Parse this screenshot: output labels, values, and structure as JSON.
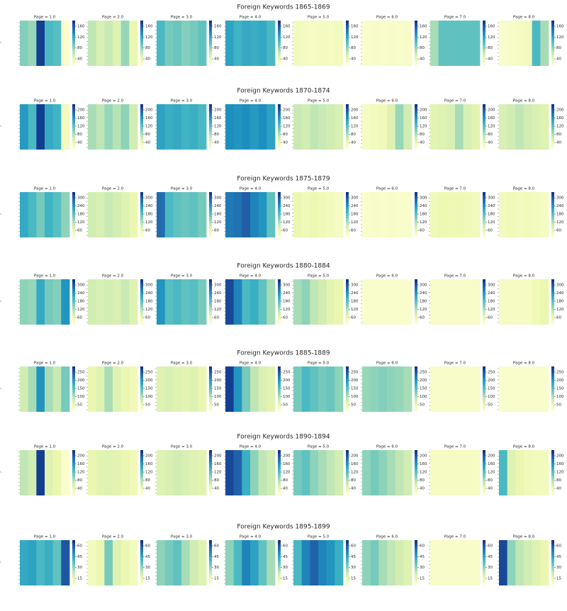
{
  "figure": {
    "colormap": [
      "#ffffd9",
      "#edf8b1",
      "#c7e9b4",
      "#7fcdbb",
      "#41b6c4",
      "#1d91c0",
      "#225ea8",
      "#0c2c84"
    ]
  },
  "chart_data": [
    {
      "type": "heatmap",
      "title": "Foreign Keywords 1865-1869",
      "panels": [
        {
          "title": "Page = 1.0",
          "values": [
            0.42,
            0.38,
            0.95,
            0.55,
            0.52,
            0.05
          ]
        },
        {
          "title": "Page = 2.0",
          "values": [
            0.3,
            0.22,
            0.28,
            0.2,
            0.38,
            0.15
          ]
        },
        {
          "title": "Page = 3.0",
          "values": [
            0.55,
            0.45,
            0.48,
            0.42,
            0.45,
            0.5
          ]
        },
        {
          "title": "Page = 4.0",
          "values": [
            0.65,
            0.58,
            0.62,
            0.6,
            0.62,
            0.55
          ]
        },
        {
          "title": "Page = 5.0",
          "values": [
            0.1,
            0.09,
            0.08,
            0.09,
            0.08,
            0.1
          ]
        },
        {
          "title": "Page = 6.0",
          "values": [
            0.05,
            0.06,
            0.05,
            0.06,
            0.05,
            0.06
          ]
        },
        {
          "title": "Page = 7.0",
          "values": [
            0.35,
            0.5,
            0.5,
            0.5,
            0.5,
            0.5
          ]
        },
        {
          "title": "Page = 8.0",
          "values": [
            0.05,
            0.06,
            0.08,
            0.1,
            0.55,
            0.35
          ]
        }
      ],
      "colorbar_ticks": [
        "160",
        "120",
        "80",
        "40"
      ]
    },
    {
      "type": "heatmap",
      "title": "Foreign Keywords 1870-1874",
      "panels": [
        {
          "title": "Page = 1.0",
          "values": [
            0.68,
            0.55,
            0.95,
            0.62,
            0.58,
            0.1
          ]
        },
        {
          "title": "Page = 2.0",
          "values": [
            0.35,
            0.3,
            0.38,
            0.32,
            0.4,
            0.25
          ]
        },
        {
          "title": "Page = 3.0",
          "values": [
            0.65,
            0.6,
            0.62,
            0.58,
            0.6,
            0.55
          ]
        },
        {
          "title": "Page = 4.0",
          "values": [
            0.72,
            0.7,
            0.72,
            0.68,
            0.72,
            0.65
          ]
        },
        {
          "title": "Page = 5.0",
          "values": [
            0.28,
            0.25,
            0.3,
            0.28,
            0.25,
            0.22
          ]
        },
        {
          "title": "Page = 6.0",
          "values": [
            0.08,
            0.1,
            0.12,
            0.2,
            0.38,
            0.25
          ]
        },
        {
          "title": "Page = 7.0",
          "values": [
            0.18,
            0.2,
            0.22,
            0.35,
            0.22,
            0.18
          ]
        },
        {
          "title": "Page = 8.0",
          "values": [
            0.22,
            0.25,
            0.3,
            0.25,
            0.22,
            0.2
          ]
        }
      ],
      "colorbar_ticks": [
        "200",
        "160",
        "120",
        "80",
        "40"
      ]
    },
    {
      "type": "heatmap",
      "title": "Foreign Keywords 1875-1879",
      "panels": [
        {
          "title": "Page = 1.0",
          "values": [
            0.62,
            0.55,
            0.45,
            0.58,
            0.52,
            0.4
          ]
        },
        {
          "title": "Page = 2.0",
          "values": [
            0.25,
            0.22,
            0.28,
            0.24,
            0.2,
            0.15
          ]
        },
        {
          "title": "Page = 3.0",
          "values": [
            0.82,
            0.55,
            0.5,
            0.48,
            0.5,
            0.45
          ]
        },
        {
          "title": "Page = 4.0",
          "values": [
            0.78,
            0.8,
            0.86,
            0.75,
            0.7,
            0.5
          ]
        },
        {
          "title": "Page = 5.0",
          "values": [
            0.15,
            0.12,
            0.14,
            0.12,
            0.1,
            0.08
          ]
        },
        {
          "title": "Page = 6.0",
          "values": [
            0.05,
            0.06,
            0.05,
            0.06,
            0.05,
            0.05
          ]
        },
        {
          "title": "Page = 7.0",
          "values": [
            0.12,
            0.14,
            0.13,
            0.14,
            0.12,
            0.1
          ]
        },
        {
          "title": "Page = 8.0",
          "values": [
            0.1,
            0.12,
            0.1,
            0.11,
            0.1,
            0.08
          ]
        }
      ],
      "colorbar_ticks": [
        "300",
        "240",
        "180",
        "120",
        "60"
      ]
    },
    {
      "type": "heatmap",
      "title": "Foreign Keywords 1880-1884",
      "panels": [
        {
          "title": "Page = 1.0",
          "values": [
            0.4,
            0.38,
            0.62,
            0.45,
            0.42,
            0.7
          ]
        },
        {
          "title": "Page = 2.0",
          "values": [
            0.25,
            0.22,
            0.24,
            0.22,
            0.28,
            0.2
          ]
        },
        {
          "title": "Page = 3.0",
          "values": [
            0.7,
            0.52,
            0.55,
            0.5,
            0.52,
            0.45
          ]
        },
        {
          "title": "Page = 4.0",
          "values": [
            0.92,
            0.75,
            0.55,
            0.6,
            0.5,
            0.35
          ]
        },
        {
          "title": "Page = 5.0",
          "values": [
            0.35,
            0.4,
            0.3,
            0.25,
            0.18,
            0.15
          ]
        },
        {
          "title": "Page = 6.0",
          "values": [
            0.05,
            0.05,
            0.05,
            0.05,
            0.05,
            0.05
          ]
        },
        {
          "title": "Page = 7.0",
          "values": [
            0.06,
            0.06,
            0.06,
            0.06,
            0.06,
            0.06
          ]
        },
        {
          "title": "Page = 8.0",
          "values": [
            0.08,
            0.08,
            0.08,
            0.08,
            0.12,
            0.15
          ]
        }
      ],
      "colorbar_ticks": [
        "300",
        "240",
        "180",
        "120",
        "60"
      ]
    },
    {
      "type": "heatmap",
      "title": "Foreign Keywords 1885-1889",
      "panels": [
        {
          "title": "Page = 1.0",
          "values": [
            0.25,
            0.35,
            0.7,
            0.35,
            0.28,
            0.45
          ]
        },
        {
          "title": "Page = 2.0",
          "values": [
            0.15,
            0.2,
            0.35,
            0.2,
            0.15,
            0.12
          ]
        },
        {
          "title": "Page = 3.0",
          "values": [
            0.2,
            0.22,
            0.2,
            0.18,
            0.2,
            0.15
          ]
        },
        {
          "title": "Page = 4.0",
          "values": [
            0.95,
            0.7,
            0.45,
            0.3,
            0.22,
            0.18
          ]
        },
        {
          "title": "Page = 5.0",
          "values": [
            0.45,
            0.55,
            0.5,
            0.45,
            0.48,
            0.4
          ]
        },
        {
          "title": "Page = 6.0",
          "values": [
            0.38,
            0.4,
            0.42,
            0.4,
            0.38,
            0.35
          ]
        },
        {
          "title": "Page = 7.0",
          "values": [
            0.06,
            0.06,
            0.06,
            0.06,
            0.06,
            0.06
          ]
        },
        {
          "title": "Page = 8.0",
          "values": [
            0.05,
            0.05,
            0.05,
            0.05,
            0.05,
            0.05
          ]
        }
      ],
      "colorbar_ticks": [
        "250",
        "200",
        "150",
        "100",
        "50"
      ]
    },
    {
      "type": "heatmap",
      "title": "Foreign Keywords 1890-1894",
      "panels": [
        {
          "title": "Page = 1.0",
          "values": [
            0.3,
            0.25,
            0.95,
            0.2,
            0.15,
            0.05
          ]
        },
        {
          "title": "Page = 2.0",
          "values": [
            0.15,
            0.18,
            0.2,
            0.18,
            0.15,
            0.12
          ]
        },
        {
          "title": "Page = 3.0",
          "values": [
            0.2,
            0.22,
            0.25,
            0.22,
            0.2,
            0.18
          ]
        },
        {
          "title": "Page = 4.0",
          "values": [
            0.92,
            0.85,
            0.6,
            0.4,
            0.3,
            0.25
          ]
        },
        {
          "title": "Page = 5.0",
          "values": [
            0.45,
            0.5,
            0.4,
            0.35,
            0.3,
            0.25
          ]
        },
        {
          "title": "Page = 6.0",
          "values": [
            0.4,
            0.45,
            0.4,
            0.35,
            0.3,
            0.25
          ]
        },
        {
          "title": "Page = 7.0",
          "values": [
            0.08,
            0.08,
            0.08,
            0.08,
            0.08,
            0.08
          ]
        },
        {
          "title": "Page = 8.0",
          "values": [
            0.55,
            0.2,
            0.15,
            0.12,
            0.1,
            0.1
          ]
        }
      ],
      "colorbar_ticks": [
        "200",
        "160",
        "120",
        "80",
        "40"
      ]
    },
    {
      "type": "heatmap",
      "title": "Foreign Keywords 1895-1899",
      "panels": [
        {
          "title": "Page = 1.0",
          "values": [
            0.62,
            0.65,
            0.55,
            0.6,
            0.5,
            0.88
          ]
        },
        {
          "title": "Page = 2.0",
          "values": [
            0.1,
            0.15,
            0.45,
            0.2,
            0.15,
            0.1
          ]
        },
        {
          "title": "Page = 3.0",
          "values": [
            0.4,
            0.45,
            0.5,
            0.35,
            0.25,
            0.2
          ]
        },
        {
          "title": "Page = 4.0",
          "values": [
            0.4,
            0.55,
            0.75,
            0.65,
            0.5,
            0.35
          ]
        },
        {
          "title": "Page = 5.0",
          "values": [
            0.55,
            0.75,
            0.85,
            0.75,
            0.7,
            0.6
          ]
        },
        {
          "title": "Page = 6.0",
          "values": [
            0.4,
            0.45,
            0.35,
            0.3,
            0.25,
            0.2
          ]
        },
        {
          "title": "Page = 7.0",
          "values": [
            0.06,
            0.06,
            0.06,
            0.06,
            0.06,
            0.06
          ]
        },
        {
          "title": "Page = 8.0",
          "values": [
            0.92,
            0.4,
            0.3,
            0.25,
            0.2,
            0.15
          ]
        }
      ],
      "colorbar_ticks": [
        "60",
        "45",
        "30",
        "15"
      ]
    }
  ]
}
